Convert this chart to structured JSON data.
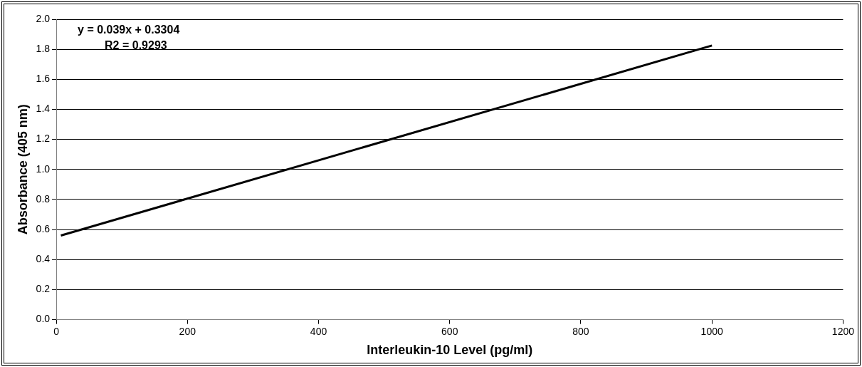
{
  "chart_data": {
    "type": "line",
    "xlabel": "Interleukin-10 Level (pg/ml)",
    "ylabel": "Absorbance (405 nm)",
    "annotations": [
      "y = 0.039x + 0.3304",
      "R2 = 0.9293"
    ],
    "series": [
      {
        "color": "#000000",
        "x": [
          7,
          1000
        ],
        "values": [
          0.56,
          1.825
        ]
      }
    ],
    "xlim": [
      0,
      1200
    ],
    "xticks": [
      0,
      200,
      400,
      600,
      800,
      1000,
      1200
    ],
    "ylim": [
      0,
      2
    ],
    "yticks": [
      {
        "value": 0,
        "label": "0.0"
      },
      {
        "value": 0.2,
        "label": "0.2"
      },
      {
        "value": 0.4,
        "label": "0.4"
      },
      {
        "value": 0.6,
        "label": "0.6"
      },
      {
        "value": 0.8,
        "label": "0.8"
      },
      {
        "value": 1,
        "label": "1.0"
      },
      {
        "value": 1.2,
        "label": "1.2"
      },
      {
        "value": 1.4,
        "label": "1.4"
      },
      {
        "value": 1.6,
        "label": "1.6"
      },
      {
        "value": 1.8,
        "label": "1.8"
      },
      {
        "value": 2,
        "label": "2.0"
      }
    ],
    "grid": "y",
    "legend": false,
    "marker": "none",
    "line_style": "solid"
  }
}
